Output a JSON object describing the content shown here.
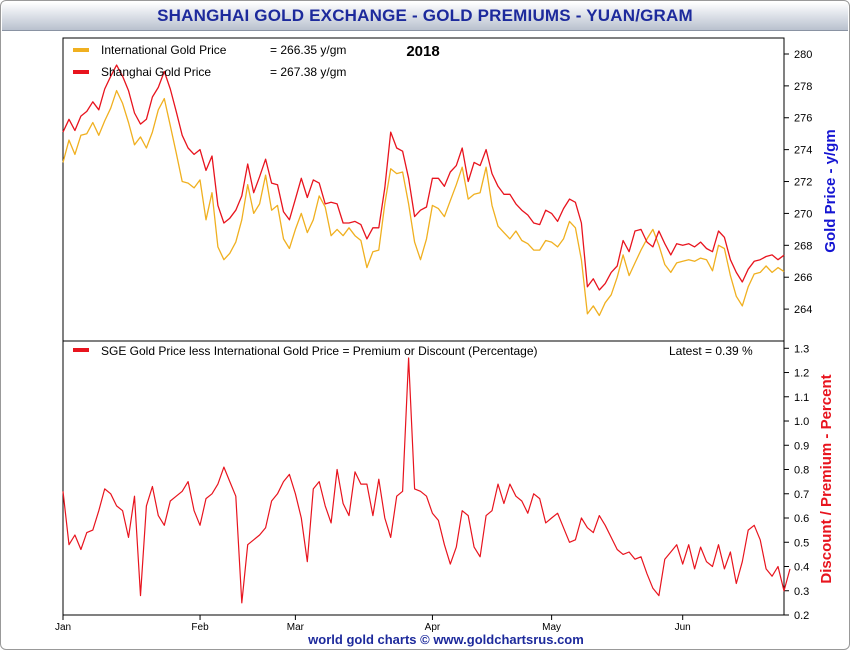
{
  "title": "SHANGHAI GOLD EXCHANGE - GOLD PREMIUMS - YUAN/GRAM",
  "footer": "world gold charts © www.goldchartsrus.com",
  "colors": {
    "title": "#1d2a9c",
    "international": "#f0b020",
    "shanghai": "#e8141e",
    "premium": "#e8141e",
    "right_axis_top": "#1414d2",
    "right_axis_bottom": "#e8141e",
    "footer": "#1d2a9c"
  },
  "chart_data": [
    {
      "type": "line",
      "title": "2018",
      "ylabel": "Gold Price - y/gm",
      "ylim": [
        262,
        281
      ],
      "yticks": [
        264,
        266,
        268,
        270,
        272,
        274,
        276,
        278,
        280
      ],
      "legend": [
        {
          "label": "International Gold Price",
          "value": "= 266.35 y/gm"
        },
        {
          "label": "Shanghai Gold Price",
          "value": "= 267.38 y/gm"
        }
      ],
      "series": [
        {
          "name": "International Gold Price",
          "values": [
            273.2,
            274.6,
            273.7,
            274.9,
            275.0,
            275.7,
            274.9,
            275.8,
            276.6,
            277.7,
            276.9,
            275.7,
            274.3,
            274.8,
            274.1,
            275.1,
            276.5,
            277.2,
            275.5,
            273.8,
            272.0,
            271.9,
            271.6,
            272.1,
            269.6,
            271.3,
            267.9,
            267.1,
            267.5,
            268.2,
            269.6,
            271.8,
            270.0,
            270.6,
            272.4,
            270.2,
            270.5,
            268.4,
            267.8,
            269.0,
            270.0,
            268.8,
            269.6,
            271.1,
            270.4,
            268.6,
            269.0,
            268.6,
            269.1,
            268.6,
            268.3,
            266.6,
            267.6,
            267.7,
            270.6,
            272.8,
            272.5,
            272.6,
            270.6,
            268.2,
            267.1,
            268.4,
            270.5,
            270.3,
            269.8,
            270.8,
            271.8,
            272.9,
            270.9,
            271.2,
            271.3,
            272.9,
            270.5,
            269.2,
            268.8,
            268.4,
            268.9,
            268.3,
            268.1,
            267.7,
            267.7,
            268.3,
            268.2,
            267.9,
            268.4,
            269.5,
            269.1,
            267.1,
            263.7,
            264.2,
            263.6,
            264.4,
            264.9,
            266.0,
            267.4,
            266.1,
            266.9,
            267.7,
            268.4,
            269.0,
            268.0,
            266.8,
            266.3,
            266.9,
            267.0,
            267.1,
            267.0,
            267.2,
            267.1,
            266.4,
            268.0,
            267.8,
            266.1,
            264.8,
            264.2,
            265.4,
            266.2,
            266.3,
            266.7,
            266.3,
            266.6,
            266.35
          ]
        },
        {
          "name": "Shanghai Gold Price",
          "values": [
            275.1,
            275.9,
            275.2,
            276.1,
            276.4,
            277.0,
            276.5,
            277.8,
            278.6,
            279.3,
            278.6,
            277.7,
            276.3,
            275.6,
            275.9,
            277.3,
            277.9,
            278.9,
            277.8,
            276.4,
            274.9,
            274.1,
            273.7,
            274.0,
            272.7,
            273.6,
            270.5,
            269.4,
            269.7,
            270.2,
            271.1,
            273.1,
            271.3,
            272.3,
            273.4,
            271.9,
            271.8,
            270.1,
            269.6,
            270.9,
            272.2,
            271.0,
            272.1,
            271.9,
            270.6,
            270.7,
            270.6,
            269.4,
            269.4,
            269.5,
            269.3,
            268.4,
            269.1,
            269.1,
            271.6,
            275.1,
            274.1,
            273.9,
            272.2,
            269.8,
            270.2,
            270.4,
            272.2,
            272.2,
            271.7,
            272.6,
            273.0,
            274.1,
            272.0,
            273.2,
            273.0,
            274.0,
            272.5,
            271.7,
            271.2,
            271.2,
            270.6,
            270.2,
            269.9,
            269.4,
            269.3,
            270.2,
            270.0,
            269.5,
            270.3,
            270.9,
            270.7,
            269.4,
            265.4,
            265.9,
            265.2,
            265.6,
            266.3,
            266.7,
            268.3,
            267.6,
            268.9,
            269.0,
            268.2,
            267.9,
            268.9,
            268.1,
            267.4,
            268.1,
            268.0,
            268.1,
            267.9,
            268.2,
            267.8,
            267.6,
            268.9,
            268.5,
            267.1,
            266.3,
            265.7,
            266.5,
            267.0,
            267.1,
            267.3,
            267.4,
            267.1,
            267.38
          ]
        }
      ]
    },
    {
      "type": "line",
      "ylabel": "Discount / Premium - Percent",
      "ylim": [
        0.2,
        1.33
      ],
      "yticks": [
        0.2,
        0.3,
        0.4,
        0.5,
        0.6,
        0.7,
        0.8,
        0.9,
        1.0,
        1.1,
        1.2,
        1.3
      ],
      "ytick_labels": [
        "0.2",
        "0.3",
        "0.4",
        "0.5",
        "0.6",
        "0.7",
        "0.8",
        "0.9",
        "1.0",
        "1.1",
        "1.2",
        "1.3"
      ],
      "legend": [
        {
          "label": "SGE Gold Price less International Gold Price = Premium or Discount (Percentage)"
        }
      ],
      "latest_label": "Latest = 0.39 %",
      "x_month_labels": [
        {
          "label": "Jan",
          "index": 0
        },
        {
          "label": "Feb",
          "index": 23
        },
        {
          "label": "Mar",
          "index": 39
        },
        {
          "label": "Apr",
          "index": 62
        },
        {
          "label": "May",
          "index": 82
        },
        {
          "label": "Jun",
          "index": 104
        }
      ],
      "series": [
        {
          "name": "Premium",
          "values": [
            0.71,
            0.49,
            0.53,
            0.47,
            0.54,
            0.55,
            0.63,
            0.72,
            0.7,
            0.65,
            0.63,
            0.52,
            0.69,
            0.28,
            0.65,
            0.73,
            0.61,
            0.57,
            0.67,
            0.69,
            0.71,
            0.75,
            0.63,
            0.57,
            0.68,
            0.7,
            0.74,
            0.81,
            0.75,
            0.69,
            0.25,
            0.49,
            0.51,
            0.53,
            0.56,
            0.67,
            0.7,
            0.75,
            0.78,
            0.7,
            0.6,
            0.42,
            0.72,
            0.75,
            0.65,
            0.58,
            0.8,
            0.66,
            0.61,
            0.79,
            0.74,
            0.74,
            0.61,
            0.76,
            0.6,
            0.52,
            0.69,
            0.71,
            1.26,
            0.72,
            0.71,
            0.69,
            0.62,
            0.59,
            0.49,
            0.41,
            0.48,
            0.63,
            0.61,
            0.48,
            0.44,
            0.61,
            0.63,
            0.74,
            0.66,
            0.74,
            0.69,
            0.67,
            0.62,
            0.7,
            0.68,
            0.58,
            0.6,
            0.62,
            0.56,
            0.5,
            0.51,
            0.6,
            0.56,
            0.54,
            0.61,
            0.57,
            0.52,
            0.47,
            0.45,
            0.46,
            0.43,
            0.44,
            0.37,
            0.31,
            0.28,
            0.43,
            0.46,
            0.49,
            0.41,
            0.49,
            0.39,
            0.48,
            0.42,
            0.4,
            0.49,
            0.39,
            0.46,
            0.33,
            0.42,
            0.55,
            0.57,
            0.51,
            0.39,
            0.36,
            0.4,
            0.3,
            0.39
          ]
        }
      ]
    }
  ]
}
